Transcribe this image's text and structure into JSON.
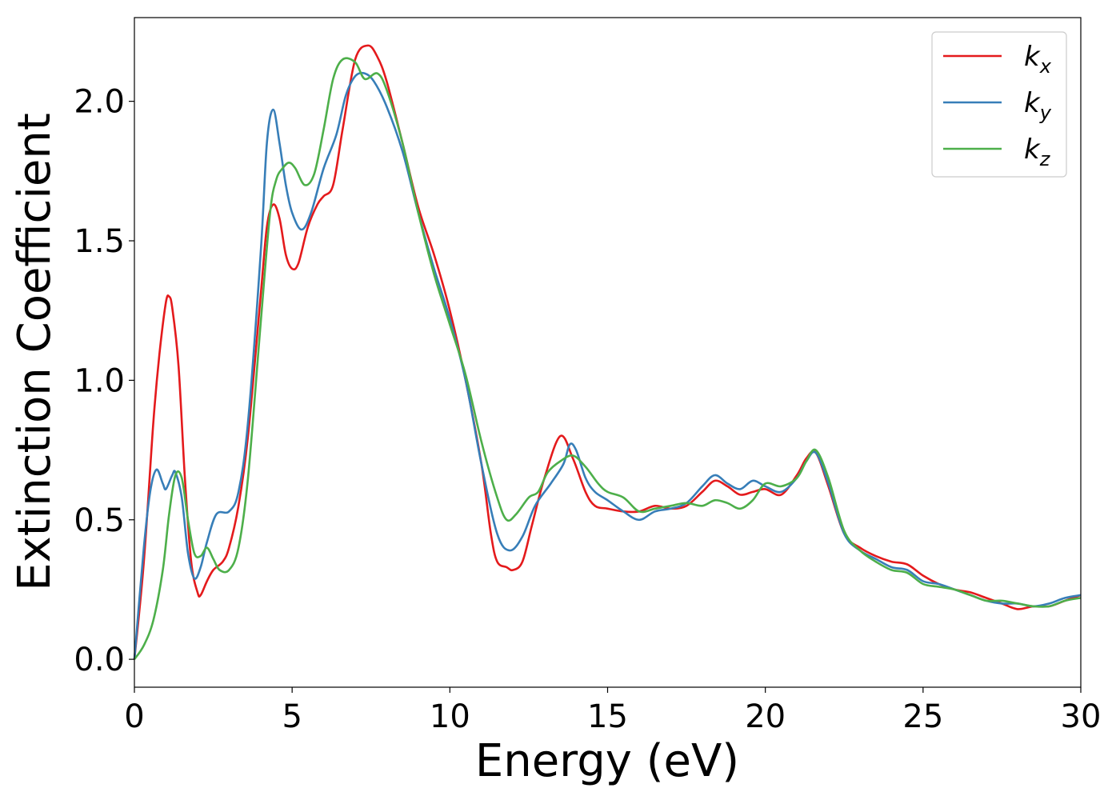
{
  "chart_data": {
    "type": "line",
    "title": "",
    "xlabel": "Energy (eV)",
    "ylabel": "Extinction Coefficient",
    "xlim": [
      0,
      30
    ],
    "ylim": [
      -0.1,
      2.3
    ],
    "xticks": [
      0,
      5,
      10,
      15,
      20,
      25,
      30
    ],
    "xtick_labels": [
      "0",
      "5",
      "10",
      "15",
      "20",
      "25",
      "30"
    ],
    "yticks": [
      0.0,
      0.5,
      1.0,
      1.5,
      2.0
    ],
    "ytick_labels": [
      "0.0",
      "0.5",
      "1.0",
      "1.5",
      "2.0"
    ],
    "grid": false,
    "legend_position": "top-right",
    "series": [
      {
        "name": "k",
        "subscript": "x",
        "color": "#e41a1c",
        "x": [
          0,
          0.3,
          0.6,
          0.8,
          1.0,
          1.1,
          1.2,
          1.4,
          1.6,
          1.8,
          2.0,
          2.1,
          2.3,
          2.5,
          2.8,
          3.0,
          3.3,
          3.6,
          4.0,
          4.2,
          4.4,
          4.6,
          4.8,
          5.0,
          5.2,
          5.5,
          5.8,
          6.0,
          6.3,
          6.6,
          7.0,
          7.4,
          7.7,
          8.0,
          8.5,
          9.0,
          9.5,
          10.0,
          10.5,
          11.0,
          11.3,
          11.5,
          11.8,
          12.0,
          12.3,
          12.6,
          13.0,
          13.5,
          13.9,
          14.3,
          14.6,
          15.0,
          15.5,
          16.0,
          16.5,
          17.0,
          17.5,
          18.0,
          18.4,
          18.8,
          19.2,
          19.6,
          20.0,
          20.5,
          21.0,
          21.3,
          21.6,
          22.0,
          22.5,
          23.0,
          23.5,
          24.0,
          24.5,
          25.0,
          25.5,
          26.0,
          26.5,
          27.0,
          27.5,
          28.0,
          28.5,
          29.0,
          29.5,
          30.0
        ],
        "y": [
          0.0,
          0.35,
          0.85,
          1.1,
          1.28,
          1.3,
          1.26,
          1.05,
          0.65,
          0.35,
          0.24,
          0.23,
          0.28,
          0.32,
          0.35,
          0.4,
          0.55,
          0.8,
          1.3,
          1.55,
          1.63,
          1.58,
          1.45,
          1.4,
          1.42,
          1.55,
          1.63,
          1.66,
          1.7,
          1.9,
          2.15,
          2.2,
          2.16,
          2.07,
          1.85,
          1.62,
          1.45,
          1.25,
          1.0,
          0.7,
          0.45,
          0.35,
          0.33,
          0.32,
          0.35,
          0.48,
          0.65,
          0.8,
          0.72,
          0.6,
          0.55,
          0.54,
          0.53,
          0.53,
          0.55,
          0.54,
          0.55,
          0.6,
          0.64,
          0.62,
          0.59,
          0.6,
          0.61,
          0.59,
          0.66,
          0.72,
          0.74,
          0.62,
          0.45,
          0.4,
          0.37,
          0.35,
          0.34,
          0.3,
          0.27,
          0.25,
          0.24,
          0.22,
          0.2,
          0.18,
          0.19,
          0.19,
          0.21,
          0.23
        ]
      },
      {
        "name": "k",
        "subscript": "y",
        "color": "#377eb8",
        "x": [
          0,
          0.3,
          0.5,
          0.7,
          0.9,
          1.0,
          1.2,
          1.3,
          1.5,
          1.7,
          1.9,
          2.1,
          2.3,
          2.6,
          3.0,
          3.3,
          3.6,
          4.0,
          4.2,
          4.4,
          4.6,
          4.8,
          5.0,
          5.3,
          5.6,
          6.0,
          6.4,
          6.7,
          7.0,
          7.3,
          7.6,
          8.0,
          8.5,
          9.0,
          9.5,
          10.0,
          10.5,
          11.0,
          11.5,
          11.9,
          12.3,
          12.7,
          13.2,
          13.6,
          13.8,
          14.0,
          14.3,
          14.6,
          15.0,
          15.5,
          16.0,
          16.5,
          17.0,
          17.5,
          18.0,
          18.4,
          18.8,
          19.2,
          19.6,
          20.0,
          20.5,
          21.0,
          21.3,
          21.6,
          22.0,
          22.5,
          23.0,
          23.5,
          24.0,
          24.5,
          25.0,
          25.5,
          26.0,
          26.5,
          27.0,
          27.5,
          28.0,
          28.5,
          29.0,
          29.5,
          30.0
        ],
        "y": [
          0.0,
          0.4,
          0.6,
          0.68,
          0.63,
          0.61,
          0.66,
          0.67,
          0.58,
          0.38,
          0.29,
          0.33,
          0.42,
          0.52,
          0.53,
          0.6,
          0.85,
          1.45,
          1.85,
          1.97,
          1.85,
          1.7,
          1.6,
          1.54,
          1.6,
          1.76,
          1.88,
          2.02,
          2.09,
          2.1,
          2.07,
          1.98,
          1.82,
          1.6,
          1.4,
          1.22,
          1.0,
          0.7,
          0.45,
          0.39,
          0.44,
          0.55,
          0.63,
          0.7,
          0.77,
          0.75,
          0.65,
          0.6,
          0.57,
          0.53,
          0.5,
          0.53,
          0.54,
          0.56,
          0.62,
          0.66,
          0.63,
          0.61,
          0.64,
          0.62,
          0.6,
          0.65,
          0.71,
          0.74,
          0.63,
          0.45,
          0.39,
          0.36,
          0.33,
          0.32,
          0.28,
          0.27,
          0.25,
          0.23,
          0.21,
          0.2,
          0.2,
          0.19,
          0.2,
          0.22,
          0.23
        ]
      },
      {
        "name": "k",
        "subscript": "z",
        "color": "#4daf4a",
        "x": [
          0,
          0.3,
          0.6,
          0.9,
          1.1,
          1.3,
          1.5,
          1.7,
          1.9,
          2.1,
          2.3,
          2.5,
          2.7,
          3.0,
          3.3,
          3.6,
          4.0,
          4.3,
          4.5,
          4.7,
          4.9,
          5.1,
          5.4,
          5.7,
          6.0,
          6.3,
          6.6,
          7.0,
          7.3,
          7.7,
          8.0,
          8.5,
          9.0,
          9.5,
          10.0,
          10.5,
          11.0,
          11.5,
          11.8,
          12.1,
          12.5,
          12.8,
          13.1,
          13.5,
          13.9,
          14.3,
          14.7,
          15.0,
          15.5,
          16.0,
          16.5,
          17.0,
          17.5,
          18.0,
          18.4,
          18.8,
          19.2,
          19.6,
          20.0,
          20.5,
          21.0,
          21.3,
          21.6,
          22.0,
          22.5,
          23.0,
          23.5,
          24.0,
          24.5,
          25.0,
          25.5,
          26.0,
          26.5,
          27.0,
          27.5,
          28.0,
          28.5,
          29.0,
          29.5,
          30.0
        ],
        "y": [
          0.0,
          0.05,
          0.14,
          0.32,
          0.52,
          0.66,
          0.65,
          0.5,
          0.38,
          0.37,
          0.4,
          0.36,
          0.32,
          0.32,
          0.4,
          0.65,
          1.2,
          1.6,
          1.72,
          1.76,
          1.78,
          1.76,
          1.7,
          1.74,
          1.9,
          2.08,
          2.15,
          2.14,
          2.08,
          2.1,
          2.04,
          1.85,
          1.6,
          1.38,
          1.2,
          1.02,
          0.78,
          0.58,
          0.5,
          0.52,
          0.58,
          0.6,
          0.67,
          0.71,
          0.73,
          0.69,
          0.63,
          0.6,
          0.58,
          0.53,
          0.54,
          0.55,
          0.56,
          0.55,
          0.57,
          0.56,
          0.54,
          0.57,
          0.63,
          0.62,
          0.65,
          0.71,
          0.75,
          0.65,
          0.46,
          0.39,
          0.35,
          0.32,
          0.31,
          0.27,
          0.26,
          0.25,
          0.23,
          0.21,
          0.21,
          0.2,
          0.19,
          0.19,
          0.21,
          0.22
        ]
      }
    ]
  }
}
